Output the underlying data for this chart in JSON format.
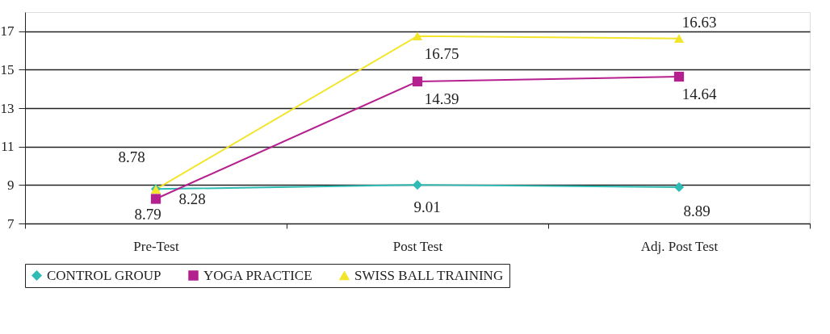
{
  "chart_data": {
    "type": "line",
    "categories": [
      "Pre-Test",
      "Post Test",
      "Adj. Post Test"
    ],
    "series": [
      {
        "name": "CONTROL GROUP",
        "color": "#2fbcb4",
        "marker": "diamond",
        "values": [
          8.79,
          9.01,
          8.89
        ]
      },
      {
        "name": "YOGA PRACTICE",
        "color": "#b5208f",
        "marker": "square",
        "values": [
          8.28,
          14.39,
          14.64
        ]
      },
      {
        "name": "SWISS BALL TRAINING",
        "color": "#f2e52a",
        "marker": "triangle",
        "values": [
          8.78,
          16.75,
          16.63
        ]
      }
    ],
    "ylim": [
      7,
      18
    ],
    "yticks": [
      7,
      9,
      11,
      13,
      15,
      17
    ],
    "grid": "y",
    "legend": "bottom",
    "data_labels": true,
    "line_style": "solid"
  }
}
